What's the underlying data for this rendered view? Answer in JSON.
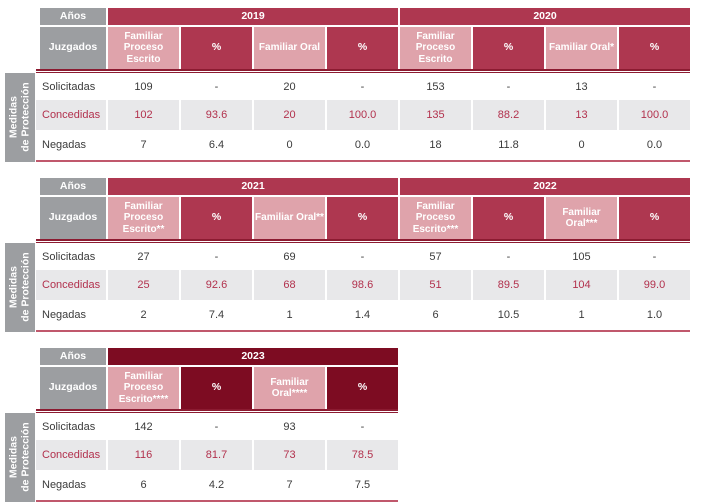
{
  "sidebar": {
    "line1": "Medidas",
    "line2": "de Protección"
  },
  "colors": {
    "header_gray": "#9c9ea1",
    "pink": "#dfa3ab",
    "crimson": "#ae3750",
    "dark_maroon_2023": "#7d0c22",
    "stripe_gray": "#e8e8ea",
    "double_line": "#8c1b31",
    "bottom_line": "#c0586c",
    "text_dark": "#3b3b3b",
    "text_accent": "#b2314d"
  },
  "tables": [
    {
      "anios_label": "Años",
      "juzgados_label": "Juzgados",
      "year_groups": [
        {
          "year": "2019",
          "columns": [
            "Familiar Proceso Escrito",
            "%",
            "Familiar Oral",
            "%"
          ]
        },
        {
          "year": "2020",
          "columns": [
            "Familiar Proceso Escrito",
            "%",
            "Familiar Oral*",
            "%"
          ]
        }
      ],
      "rows": [
        {
          "label": "Solicitadas",
          "values": [
            "109",
            "-",
            "20",
            "-",
            "153",
            "-",
            "13",
            "-"
          ]
        },
        {
          "label": "Concedidas",
          "values": [
            "102",
            "93.6",
            "20",
            "100.0",
            "135",
            "88.2",
            "13",
            "100.0"
          ]
        },
        {
          "label": "Negadas",
          "values": [
            "7",
            "6.4",
            "0",
            "0.0",
            "18",
            "11.8",
            "0",
            "0.0"
          ]
        }
      ]
    },
    {
      "anios_label": "Años",
      "juzgados_label": "Juzgados",
      "year_groups": [
        {
          "year": "2021",
          "columns": [
            "Familiar Proceso Escrito**",
            "%",
            "Familiar Oral**",
            "%"
          ]
        },
        {
          "year": "2022",
          "columns": [
            "Familiar Proceso Escrito***",
            "%",
            "Familiar Oral***",
            "%"
          ]
        }
      ],
      "rows": [
        {
          "label": "Solicitadas",
          "values": [
            "27",
            "-",
            "69",
            "-",
            "57",
            "-",
            "105",
            "-"
          ]
        },
        {
          "label": "Concedidas",
          "values": [
            "25",
            "92.6",
            "68",
            "98.6",
            "51",
            "89.5",
            "104",
            "99.0"
          ]
        },
        {
          "label": "Negadas",
          "values": [
            "2",
            "7.4",
            "1",
            "1.4",
            "6",
            "10.5",
            "1",
            "1.0"
          ]
        }
      ]
    },
    {
      "anios_label": "Años",
      "juzgados_label": "Juzgados",
      "year_groups": [
        {
          "year": "2023",
          "columns": [
            "Familiar Proceso Escrito****",
            "%",
            "Familiar Oral****",
            "%"
          ]
        }
      ],
      "rows": [
        {
          "label": "Solicitadas",
          "values": [
            "142",
            "-",
            "93",
            "-"
          ]
        },
        {
          "label": "Concedidas",
          "values": [
            "116",
            "81.7",
            "73",
            "78.5"
          ]
        },
        {
          "label": "Negadas",
          "values": [
            "6",
            "4.2",
            "7",
            "7.5"
          ]
        }
      ]
    }
  ]
}
